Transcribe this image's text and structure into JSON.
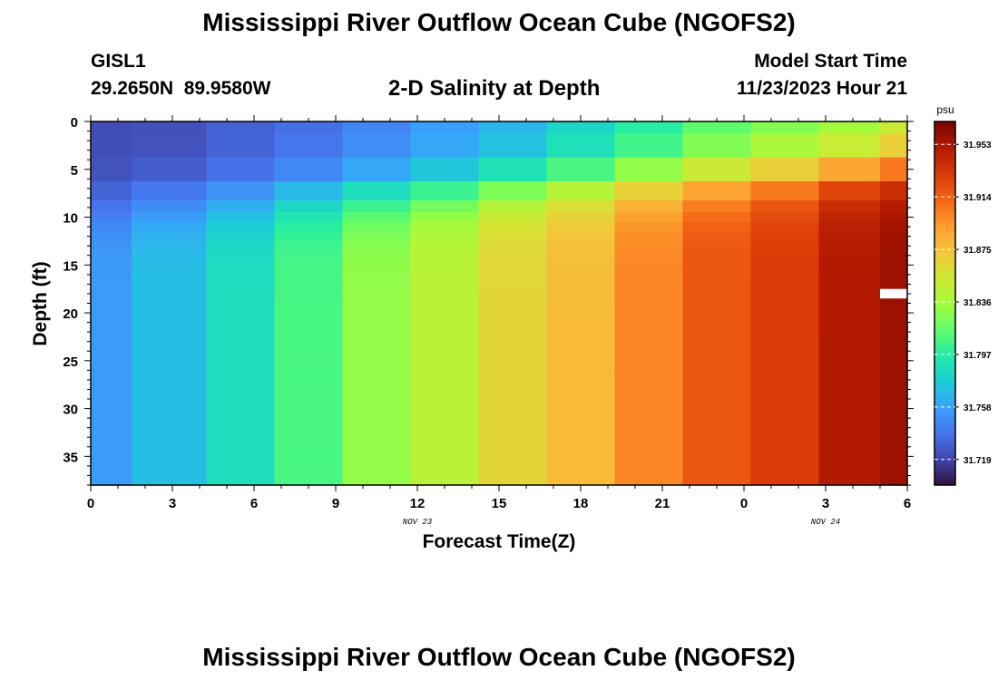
{
  "header": {
    "title": "Mississippi River Outflow Ocean Cube (NGOFS2)",
    "station": "GISL1",
    "coordinates": "29.2650N  89.9580W",
    "subtitle": "2-D Salinity at Depth",
    "model_start_label": "Model Start Time",
    "model_start_value": "11/23/2023 Hour 21"
  },
  "footer": {
    "title": "Mississippi River Outflow Ocean Cube (NGOFS2)"
  },
  "chart_data": {
    "type": "heatmap",
    "xlabel": "Forecast Time(Z)",
    "ylabel": "Depth (ft)",
    "x_tick_labels": [
      "0",
      "3",
      "6",
      "9",
      "12",
      "15",
      "18",
      "21",
      "0",
      "3",
      "6"
    ],
    "x_tick_hours": [
      0,
      3,
      6,
      9,
      12,
      15,
      18,
      21,
      24,
      27,
      30
    ],
    "x_date_labels": [
      {
        "label": "NOV 23",
        "hour": 12
      },
      {
        "label": "NOV 24",
        "hour": 27
      }
    ],
    "xlim": [
      0,
      30
    ],
    "ylim": [
      0,
      38
    ],
    "y_inverted": true,
    "y_ticks": [
      0,
      5,
      10,
      15,
      20,
      25,
      30,
      35
    ],
    "columns_hour_centers": [
      0,
      3,
      5.5,
      8,
      10.5,
      13,
      15.5,
      18,
      20.5,
      23,
      25.5,
      28,
      30
    ],
    "depth_levels_ft": [
      0,
      2.5,
      5,
      7.5,
      9,
      10,
      11,
      12,
      13,
      14,
      15,
      16,
      17,
      18,
      19,
      20,
      21,
      22,
      23,
      24,
      25,
      26,
      27,
      28,
      30,
      32,
      34,
      36,
      38
    ],
    "surface_salinity_psu": [
      31.722,
      31.724,
      31.73,
      31.736,
      31.745,
      31.755,
      31.765,
      31.78,
      31.795,
      31.812,
      31.822,
      31.83,
      31.845
    ],
    "deep_salinity_psu": [
      31.755,
      31.77,
      31.786,
      31.808,
      31.83,
      31.845,
      31.865,
      31.878,
      31.9,
      31.918,
      31.93,
      31.95,
      31.958
    ],
    "missing": [
      {
        "column_hour_center": 30,
        "depth_ft": 18
      }
    ],
    "colorbar": {
      "unit": "psu",
      "min": 31.7,
      "max": 31.97,
      "tick_values": [
        31.719,
        31.758,
        31.797,
        31.836,
        31.875,
        31.914,
        31.953
      ],
      "tick_labels": [
        "31.719",
        "31.758",
        "31.797",
        "31.836",
        "31.875",
        "31.914",
        "31.953"
      ],
      "colormap": [
        "#30123b",
        "#4145ab",
        "#4675ed",
        "#39a2fc",
        "#1bcfd4",
        "#24eca6",
        "#61fc6c",
        "#a4fc3b",
        "#d1e834",
        "#f3c63a",
        "#fe9b2d",
        "#f36315",
        "#d93806",
        "#b11901",
        "#7a0402"
      ]
    }
  }
}
